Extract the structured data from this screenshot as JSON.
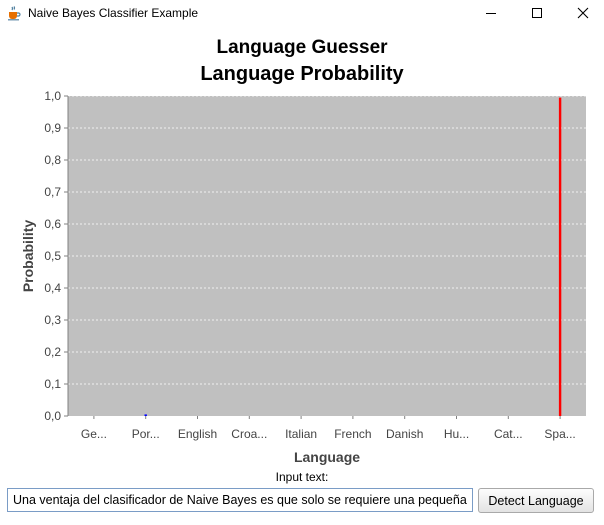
{
  "window": {
    "title": "Naive Bayes Classifier Example",
    "icon": "java-coffee-cup-icon",
    "controls": [
      "minimize-icon",
      "maximize-icon",
      "close-icon"
    ]
  },
  "chart_titles": {
    "title": "Language Guesser",
    "subtitle": "Language Probability"
  },
  "chart_data": {
    "type": "bar",
    "title": "Language Guesser",
    "subtitle": "Language Probability",
    "xlabel": "Language",
    "ylabel": "Probability",
    "ylim": [
      0,
      1.0
    ],
    "y_ticks": [
      "0,0",
      "0,1",
      "0,2",
      "0,3",
      "0,4",
      "0,5",
      "0,6",
      "0,7",
      "0,8",
      "0,9",
      "1,0"
    ],
    "categories": [
      "Ge...",
      "Por...",
      "English",
      "Croa...",
      "Italian",
      "French",
      "Danish",
      "Hu...",
      "Cat...",
      "Spa..."
    ],
    "values": [
      0.0,
      0.005,
      0.0,
      0.0,
      0.0,
      0.0,
      0.0,
      0.0,
      0.0,
      0.995
    ],
    "bar_colors": [
      "#0000ff",
      "#0000ff",
      "#0000ff",
      "#0000ff",
      "#0000ff",
      "#0000ff",
      "#0000ff",
      "#0000ff",
      "#0000ff",
      "#ff0000"
    ],
    "grid": true,
    "legend": "none",
    "plot_background": "#c0c0c0",
    "grid_color": "#ffffff"
  },
  "input": {
    "label": "Input text:",
    "value": "Una ventaja del clasificador de Naive Bayes es que solo se requiere una pequeña"
  },
  "actions": {
    "detect_label": "Detect Language"
  }
}
